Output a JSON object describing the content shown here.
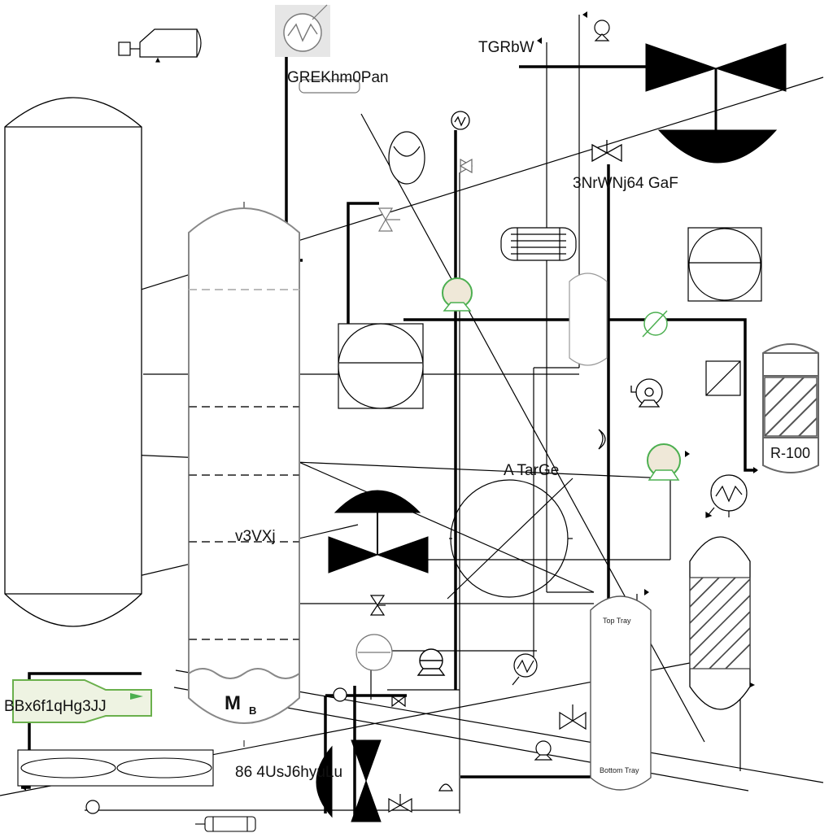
{
  "labels": {
    "top_header": "GREKhm0Pan",
    "top_right_header": "TGRbW",
    "valve_tag": "3NrWNj64 GaF",
    "mid_tag": "A TarGe",
    "left_tag": "v3VXj",
    "bottom_tag": "86 4UsJ6hyuLu",
    "exchanger_tag": "BBx6f1qHg3JJ",
    "reactor_tag": "R-100",
    "column_tag": "M",
    "column_tag_sub": "B",
    "top_tray": "Top Tray",
    "bottom_tray": "Bottom Tray"
  },
  "colors": {
    "line": "#000000",
    "gray": "#777777",
    "pump_fill": "#efe8d8",
    "pump_stroke": "#4caf50",
    "exchanger_fill": "#eef3e2",
    "exchanger_stroke": "#6ab04c"
  }
}
